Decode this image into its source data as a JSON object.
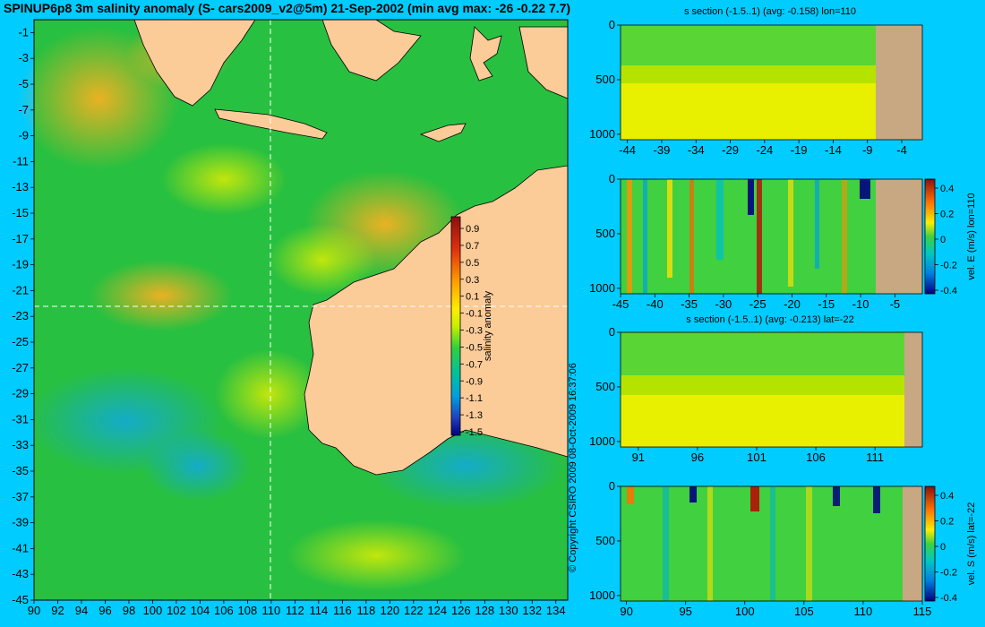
{
  "title": "SPINUP6p8 3m salinity anomaly (S- cars2009_v2@5m) 21-Sep-2002 (min avg max: -26 -0.22 7.7)",
  "copyright": "© Copyright CSIRO 2009   08-Oct-2009 16:37:06",
  "colors": {
    "background": "#00ccff",
    "land": "#fbcb98",
    "section_land": "#c8a882"
  },
  "chart_data": [
    {
      "type": "heatmap",
      "name": "map",
      "x_ticks": [
        "90",
        "92",
        "94",
        "96",
        "98",
        "100",
        "102",
        "104",
        "106",
        "108",
        "110",
        "112",
        "114",
        "116",
        "118",
        "120",
        "122",
        "124",
        "126",
        "128",
        "130",
        "132",
        "134"
      ],
      "y_ticks": [
        "-1",
        "-3",
        "-5",
        "-7",
        "-9",
        "-11",
        "-13",
        "-15",
        "-17",
        "-19",
        "-21",
        "-23",
        "-25",
        "-27",
        "-29",
        "-31",
        "-33",
        "-35",
        "-37",
        "-39",
        "-41",
        "-43",
        "-45"
      ],
      "xlim": [
        90,
        135
      ],
      "ylim": [
        -45,
        0
      ],
      "section_lines": {
        "lon": 110,
        "lat": -22
      },
      "colorbar": {
        "label": "salinity anomaly",
        "ticks": [
          "0.9",
          "0.7",
          "0.5",
          "0.3",
          "0.1",
          "-0.1",
          "-0.3",
          "-0.5",
          "-0.7",
          "-0.9",
          "-1.1",
          "-1.3",
          "-1.5"
        ]
      }
    },
    {
      "type": "heatmap",
      "name": "s-section-lon110",
      "title": "s section (-1.5..1) (avg: -0.158) lon=110",
      "x_ticks": [
        "-44",
        "-39",
        "-34",
        "-29",
        "-24",
        "-19",
        "-14",
        "-9",
        "-4"
      ],
      "y_ticks": [
        "0",
        "500",
        "1000"
      ],
      "xlim": [
        -45,
        -1
      ],
      "ylim": [
        1050,
        0
      ]
    },
    {
      "type": "heatmap",
      "name": "vel-e-section-lon110",
      "title": "",
      "x_ticks": [
        "-45",
        "-40",
        "-35",
        "-30",
        "-25",
        "-20",
        "-15",
        "-10",
        "-5"
      ],
      "y_ticks": [
        "0",
        "500",
        "1000"
      ],
      "xlim": [
        -45,
        -1
      ],
      "ylim": [
        1050,
        0
      ],
      "colorbar": {
        "label": "vel. E (m/s) lon=110",
        "ticks": [
          "0.4",
          "0.2",
          "0",
          "-0.2",
          "-0.4"
        ]
      }
    },
    {
      "type": "heatmap",
      "name": "s-section-lat22",
      "title": "s section (-1.5..1) (avg: -0.213) lat=-22",
      "x_ticks": [
        "91",
        "96",
        "101",
        "106",
        "111"
      ],
      "y_ticks": [
        "0",
        "500",
        "1000"
      ],
      "xlim": [
        89.5,
        115
      ],
      "ylim": [
        1050,
        0
      ]
    },
    {
      "type": "heatmap",
      "name": "vel-s-section-lat22",
      "title": "",
      "x_ticks": [
        "90",
        "95",
        "100",
        "105",
        "110",
        "115"
      ],
      "y_ticks": [
        "0",
        "500",
        "1000"
      ],
      "xlim": [
        89.5,
        115
      ],
      "ylim": [
        1050,
        0
      ],
      "colorbar": {
        "label": "vel. S (m/s) lat=-22",
        "ticks": [
          "0.4",
          "0.2",
          "0",
          "-0.2",
          "-0.4"
        ]
      }
    }
  ]
}
